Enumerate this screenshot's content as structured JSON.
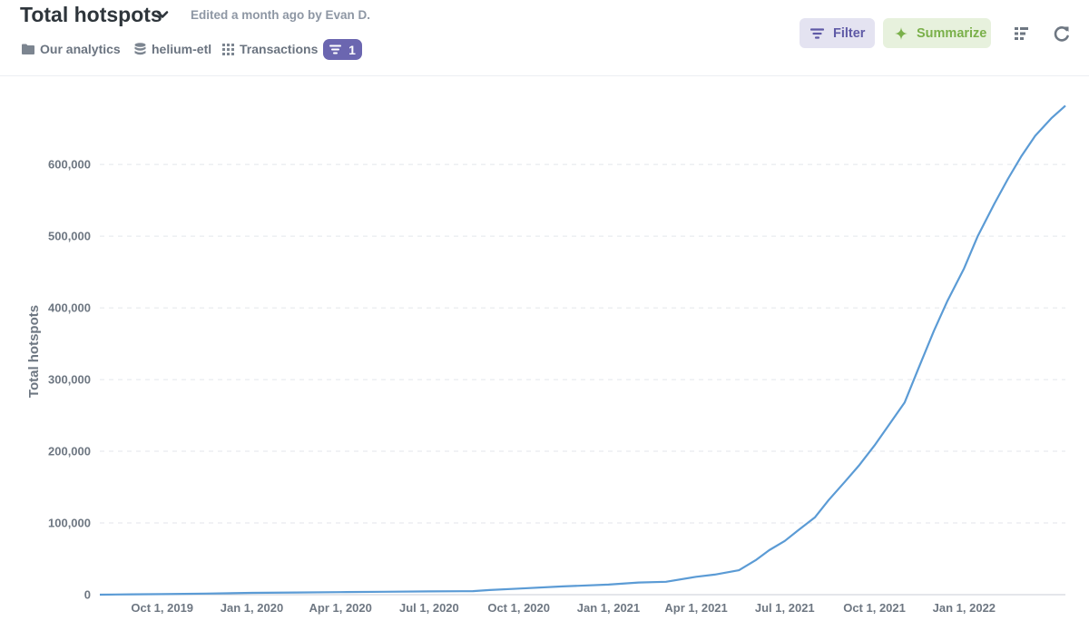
{
  "header": {
    "title": "Total hotspots",
    "edited": "Edited a month ago by Evan D.",
    "breadcrumbs": [
      {
        "label": "Our analytics",
        "icon": "folder-icon"
      },
      {
        "label": "helium-etl",
        "icon": "database-icon"
      },
      {
        "label": "Transactions",
        "icon": "grid-icon"
      }
    ],
    "filter_count": "1",
    "buttons": {
      "filter": "Filter",
      "summarize": "Summarize"
    },
    "colors": {
      "accent": "#6b66b0",
      "summarize": "#7ab04a",
      "line": "#5b9bd5"
    }
  },
  "chart_data": {
    "type": "line",
    "ylabel": "Total hotspots",
    "xlabel": "",
    "ylim": [
      0,
      680000
    ],
    "yticks": [
      0,
      100000,
      200000,
      300000,
      400000,
      500000,
      600000
    ],
    "ytick_labels": [
      "0",
      "100,000",
      "200,000",
      "300,000",
      "400,000",
      "500,000",
      "600,000"
    ],
    "xticks": [
      "2019-10-01",
      "2020-01-01",
      "2020-04-01",
      "2020-07-01",
      "2020-10-01",
      "2021-01-01",
      "2021-04-01",
      "2021-07-01",
      "2021-10-01",
      "2022-01-01"
    ],
    "xtick_labels": [
      "Oct 1, 2019",
      "Jan 1, 2020",
      "Apr 1, 2020",
      "Jul 1, 2020",
      "Oct 1, 2020",
      "Jan 1, 2021",
      "Apr 1, 2021",
      "Jul 1, 2021",
      "Oct 1, 2021",
      "Jan 1, 2022"
    ],
    "xlim": [
      "2019-07-29",
      "2022-04-15"
    ],
    "grid": true,
    "series": [
      {
        "x": [
          "2019-07-29",
          "2019-09-01",
          "2019-10-01",
          "2019-11-15",
          "2020-01-01",
          "2020-02-15",
          "2020-04-01",
          "2020-05-15",
          "2020-07-01",
          "2020-08-15",
          "2020-09-01",
          "2020-10-01",
          "2020-11-15",
          "2021-01-01",
          "2021-02-01",
          "2021-03-01",
          "2021-04-01",
          "2021-04-20",
          "2021-05-15",
          "2021-06-01",
          "2021-06-15",
          "2021-07-01",
          "2021-07-15",
          "2021-08-01",
          "2021-08-15",
          "2021-09-01",
          "2021-09-15",
          "2021-10-01",
          "2021-10-15",
          "2021-11-01",
          "2021-11-15",
          "2021-12-01",
          "2021-12-15",
          "2022-01-01",
          "2022-01-15",
          "2022-02-01",
          "2022-02-15",
          "2022-03-01",
          "2022-03-15",
          "2022-04-01",
          "2022-04-15"
        ],
        "y": [
          0,
          500,
          700,
          1500,
          2500,
          3000,
          3500,
          4000,
          4500,
          5000,
          6500,
          8500,
          11500,
          14000,
          17000,
          18000,
          25000,
          28000,
          34000,
          48000,
          62000,
          75000,
          90000,
          108000,
          132000,
          158000,
          180000,
          208000,
          235000,
          268000,
          315000,
          368000,
          410000,
          455000,
          500000,
          545000,
          580000,
          612000,
          640000,
          665000,
          682000
        ]
      }
    ]
  }
}
